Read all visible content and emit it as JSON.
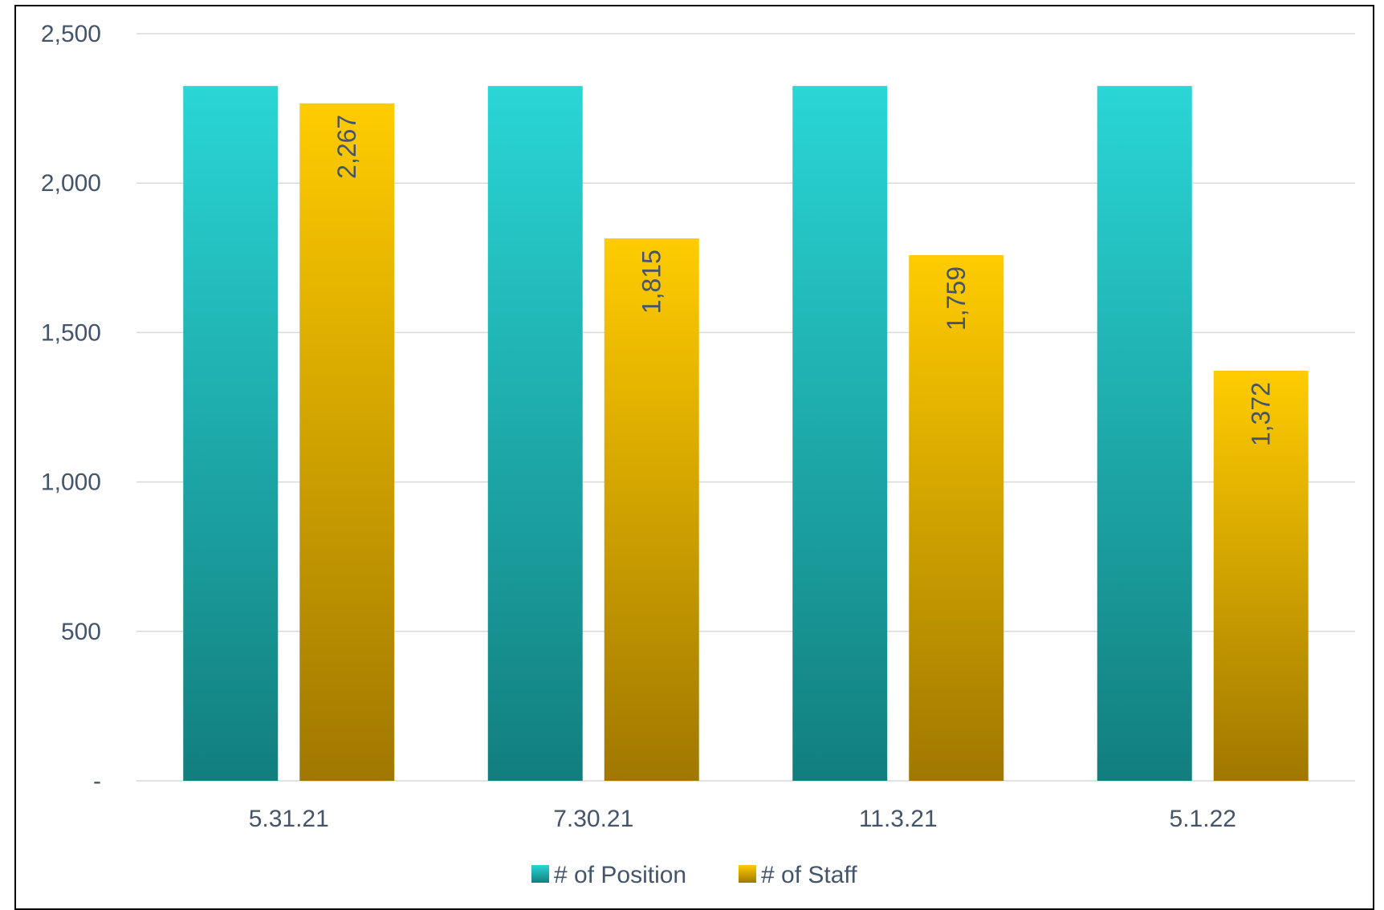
{
  "chart_data": {
    "type": "bar",
    "title": "",
    "xlabel": "",
    "ylabel": "",
    "categories": [
      "5.31.21",
      "7.30.21",
      "11.3.21",
      "5.1.22"
    ],
    "series": [
      {
        "name": "# of Position",
        "values": [
          2325,
          2325,
          2325,
          2325
        ],
        "color_top": "#2ad6d6",
        "color_bottom": "#127e7e",
        "data_labels": [
          "",
          "",
          "",
          ""
        ]
      },
      {
        "name": "# of Staff",
        "values": [
          2267,
          1815,
          1759,
          1372
        ],
        "color_top": "#ffcc00",
        "color_bottom": "#a07800",
        "data_labels": [
          "2,267",
          "1,815",
          "1,759",
          "1,372"
        ]
      }
    ],
    "ylim": [
      0,
      2500
    ],
    "yticks": [
      0,
      500,
      1000,
      1500,
      2000,
      2500
    ],
    "ytick_labels": [
      "-",
      "500",
      "1,000",
      "1,500",
      "2,000",
      "2,500"
    ],
    "grid": true,
    "legend_position": "bottom",
    "colors": {
      "grid": "#d9d9d9",
      "text": "#44546a",
      "frame": "#000000"
    }
  }
}
